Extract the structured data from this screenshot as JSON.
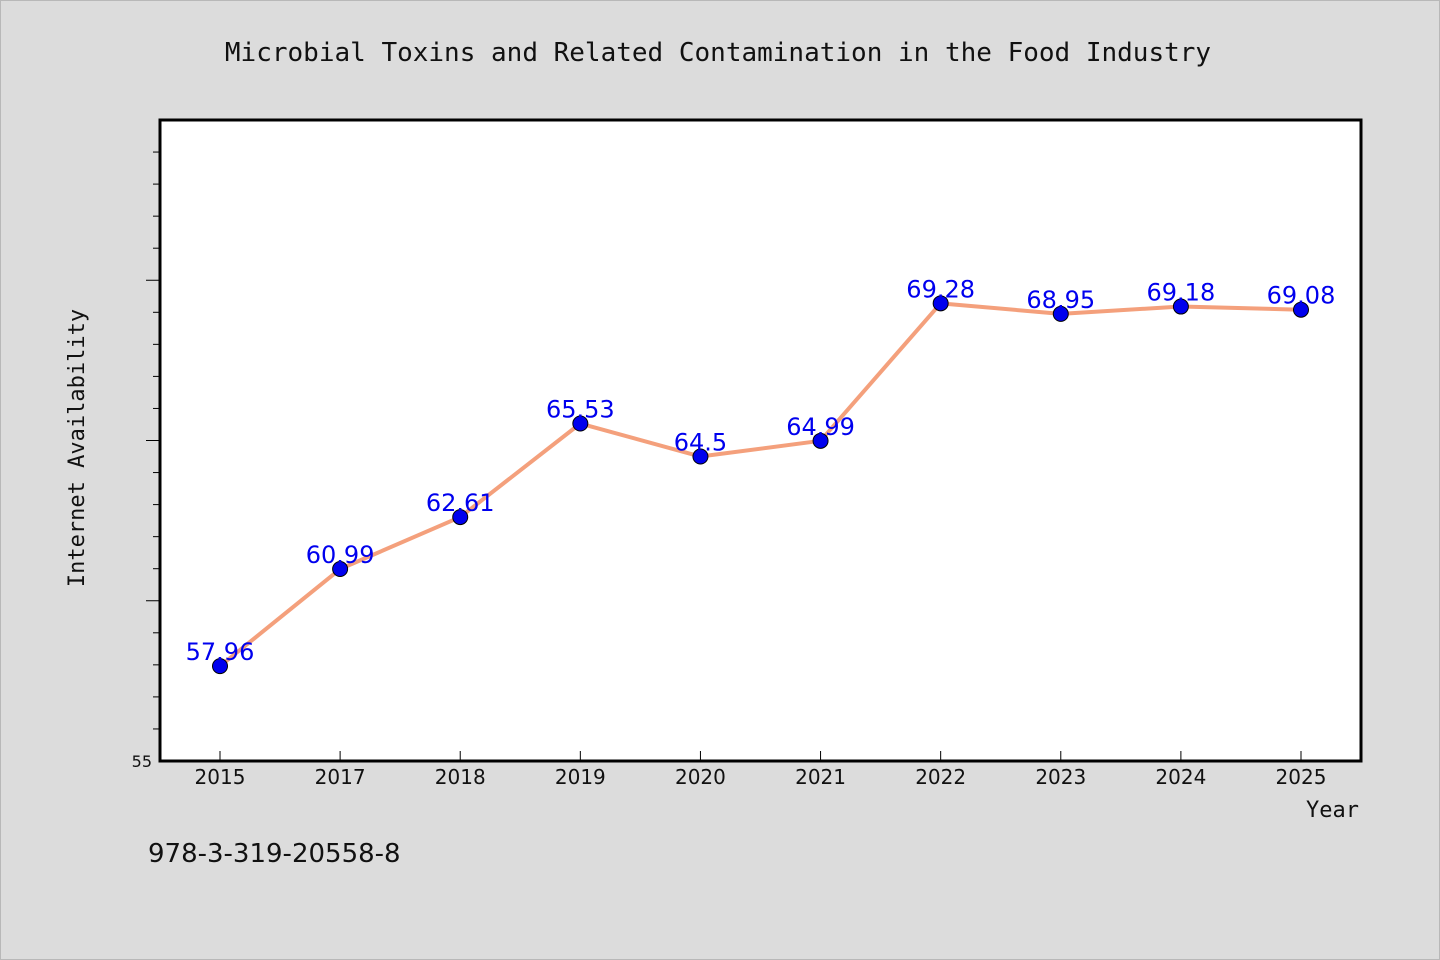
{
  "chart_data": {
    "type": "line",
    "title": "Microbial Toxins and Related Contamination in the Food Industry",
    "xlabel": "Year",
    "ylabel": "Internet Availability",
    "categories": [
      "2015",
      "2017",
      "2018",
      "2019",
      "2020",
      "2021",
      "2022",
      "2023",
      "2024",
      "2025"
    ],
    "series": [
      {
        "values": [
          57.96,
          60.99,
          62.61,
          65.53,
          64.5,
          64.99,
          69.28,
          68.95,
          69.18,
          69.08
        ],
        "labels": [
          "57.96",
          "60.99",
          "62.61",
          "65.53",
          "64.5",
          "64.99",
          "69.28",
          "68.95",
          "69.18",
          "69.08"
        ]
      }
    ],
    "ylim": [
      55,
      75
    ],
    "y_tick_labels": [
      "55"
    ],
    "grid": false,
    "line_color": "#f4a07c",
    "marker_color": "#0000ee",
    "label_color": "#0000ee"
  },
  "footer_text": "978-3-319-20558-8"
}
